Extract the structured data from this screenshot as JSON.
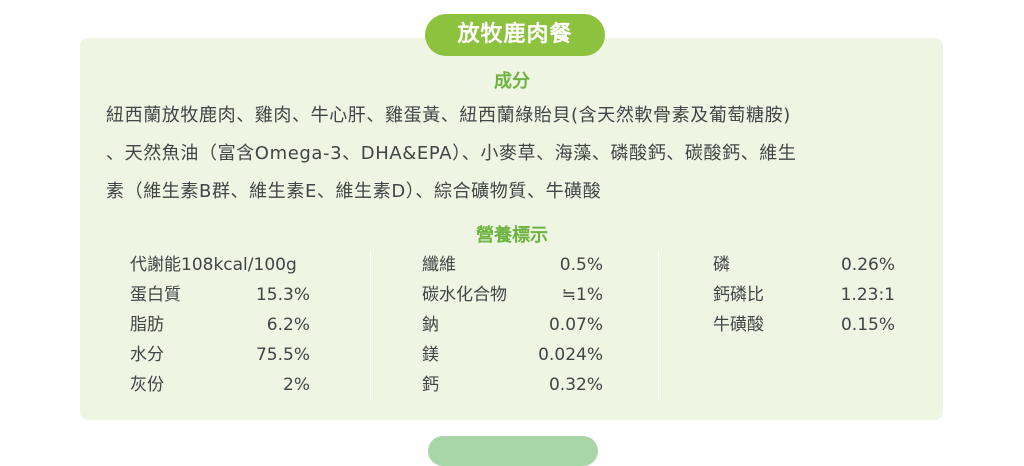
{
  "header": {
    "title": "放牧鹿肉餐"
  },
  "ingredients": {
    "heading": "成分",
    "lines": [
      "紐西蘭放牧鹿肉、雞肉、牛心肝、雞蛋黃、紐西蘭綠貽貝(含天然軟骨素及葡萄糖胺)",
      "、天然魚油（富含Omega-3、DHA&EPA）、小麥草、海藻、磷酸鈣、碳酸鈣、維生",
      "素（維生素B群、維生素E、維生素D）、綜合礦物質、牛磺酸"
    ]
  },
  "nutrition": {
    "heading": "營養標示",
    "columns": [
      [
        {
          "label": "代謝能108kcal/100g"
        },
        {
          "label": "蛋白質",
          "value": "15.3%"
        },
        {
          "label": "脂肪",
          "value": "6.2%"
        },
        {
          "label": "水分",
          "value": "75.5%"
        },
        {
          "label": "灰份",
          "value": "2%"
        }
      ],
      [
        {
          "label": "纖維",
          "value": "0.5%"
        },
        {
          "label": "碳水化合物",
          "value": "≒1%"
        },
        {
          "label": "鈉",
          "value": "0.07%"
        },
        {
          "label": "鎂",
          "value": "0.024%"
        },
        {
          "label": "鈣",
          "value": "0.32%"
        }
      ],
      [
        {
          "label": "磷",
          "value": "0.26%"
        },
        {
          "label": "鈣磷比",
          "value": "1.23:1"
        },
        {
          "label": "牛磺酸",
          "value": "0.15%"
        }
      ]
    ]
  }
}
